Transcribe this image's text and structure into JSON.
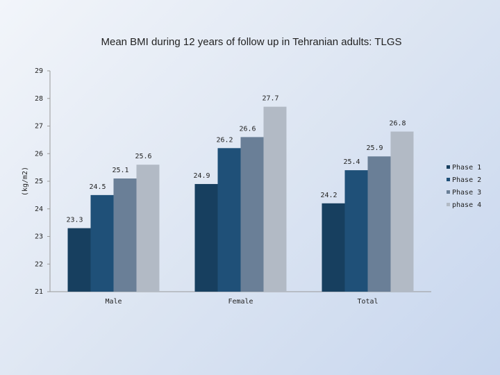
{
  "chart_data": {
    "type": "bar",
    "title": "Mean BMI during 12 years of follow up in Tehranian adults: TLGS",
    "y_label": "(kg/m2)",
    "categories": [
      "Male",
      "Female",
      "Total"
    ],
    "series": [
      {
        "name": "Phase 1",
        "color": "#173f5f",
        "values": [
          23.3,
          24.9,
          24.2
        ]
      },
      {
        "name": "Phase 2",
        "color": "#1f5078",
        "values": [
          24.5,
          26.2,
          25.4
        ]
      },
      {
        "name": "Phase 3",
        "color": "#6a7f97",
        "values": [
          25.1,
          26.6,
          25.9
        ]
      },
      {
        "name": "phase 4",
        "color": "#b2bac5",
        "values": [
          25.6,
          27.7,
          26.8
        ]
      }
    ],
    "ylim": [
      21,
      29
    ],
    "yticks": [
      21,
      22,
      23,
      24,
      25,
      26,
      27,
      28,
      29
    ],
    "legend": "right"
  }
}
